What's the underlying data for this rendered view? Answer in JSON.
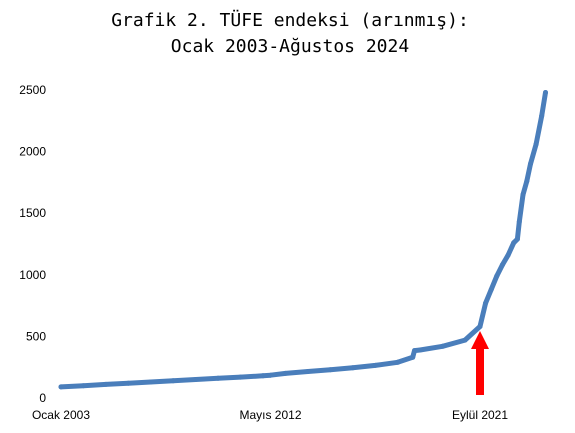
{
  "chart_data": {
    "type": "line",
    "title": [
      "Grafik 2. TÜFE endeksi (arınmış):",
      "Ocak 2003-Ağustos 2024"
    ],
    "xlabel": "",
    "ylabel": "",
    "ylim": [
      0,
      2500
    ],
    "yticks": [
      "0",
      "500",
      "1000",
      "1500",
      "2000",
      "2500"
    ],
    "xticks": [
      {
        "label": "Ocak 2003",
        "date": "2003-01"
      },
      {
        "label": "Mayıs 2012",
        "date": "2012-05"
      },
      {
        "label": "Eylül 2021",
        "date": "2021-09"
      }
    ],
    "grid": false,
    "legend": "none",
    "line_color": "#4A7EBB",
    "annotation": {
      "type": "arrow",
      "date": "2021-09",
      "color": "#FF0000"
    },
    "x": [
      "2003-01",
      "2004-01",
      "2005-01",
      "2006-01",
      "2007-01",
      "2008-01",
      "2009-01",
      "2010-01",
      "2011-01",
      "2012-01",
      "2012-05",
      "2013-01",
      "2014-01",
      "2015-01",
      "2016-01",
      "2017-01",
      "2018-01",
      "2018-09",
      "2018-10",
      "2019-01",
      "2020-01",
      "2021-01",
      "2021-09",
      "2021-12",
      "2022-03",
      "2022-06",
      "2022-09",
      "2022-12",
      "2023-03",
      "2023-05",
      "2023-06",
      "2023-08",
      "2023-10",
      "2023-12",
      "2024-03",
      "2024-06",
      "2024-08"
    ],
    "values": [
      90,
      100,
      110,
      120,
      130,
      140,
      150,
      160,
      170,
      180,
      185,
      200,
      215,
      230,
      245,
      265,
      290,
      330,
      385,
      390,
      420,
      470,
      580,
      770,
      880,
      990,
      1080,
      1160,
      1260,
      1290,
      1430,
      1650,
      1760,
      1900,
      2060,
      2290,
      2480
    ]
  }
}
